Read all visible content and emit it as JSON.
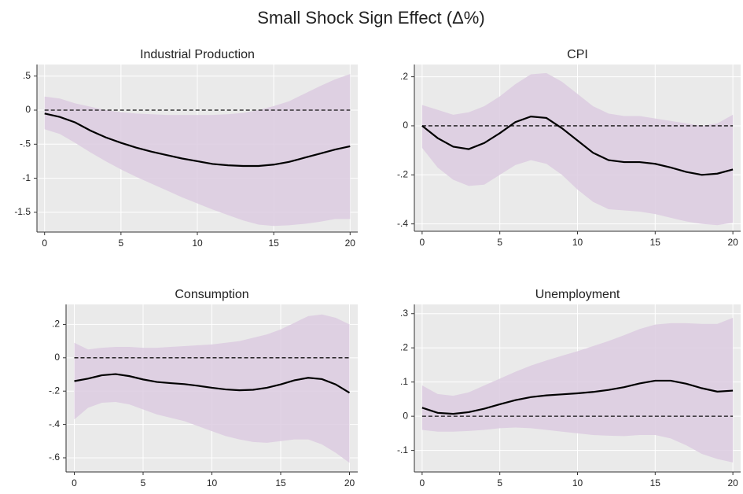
{
  "title": "Small Shock Sign Effect (Δ%)",
  "chart_data": [
    {
      "type": "line",
      "title": "Industrial Production",
      "x": [
        0,
        1,
        2,
        3,
        4,
        5,
        6,
        7,
        8,
        9,
        10,
        11,
        12,
        13,
        14,
        15,
        16,
        17,
        18,
        19,
        20
      ],
      "values": [
        -0.05,
        -0.1,
        -0.18,
        -0.3,
        -0.4,
        -0.48,
        -0.55,
        -0.61,
        -0.66,
        -0.71,
        -0.75,
        -0.79,
        -0.81,
        -0.82,
        -0.82,
        -0.8,
        -0.76,
        -0.7,
        -0.64,
        -0.58,
        -0.53
      ],
      "upper": [
        0.2,
        0.17,
        0.1,
        0.05,
        0.0,
        -0.03,
        -0.05,
        -0.06,
        -0.07,
        -0.07,
        -0.07,
        -0.07,
        -0.06,
        -0.04,
        0.0,
        0.06,
        0.13,
        0.24,
        0.35,
        0.45,
        0.53
      ],
      "lower": [
        -0.28,
        -0.35,
        -0.48,
        -0.62,
        -0.75,
        -0.87,
        -0.98,
        -1.08,
        -1.18,
        -1.28,
        -1.37,
        -1.46,
        -1.54,
        -1.62,
        -1.68,
        -1.7,
        -1.69,
        -1.67,
        -1.64,
        -1.6,
        -1.6
      ],
      "color": "#000000",
      "band_color": "#dccbe1",
      "refline": 0,
      "grid": true,
      "xlim": [
        -0.5,
        20.5
      ],
      "xticks": [
        0,
        5,
        10,
        15,
        20
      ],
      "ylim": [
        -1.79,
        0.67
      ],
      "yticks": [
        {
          "value": 0.5,
          "label": ".5"
        },
        0,
        {
          "value": -0.5,
          "label": "-.5"
        },
        -1,
        -1.5
      ]
    },
    {
      "type": "line",
      "title": "CPI",
      "x": [
        0,
        1,
        2,
        3,
        4,
        5,
        6,
        7,
        8,
        9,
        10,
        11,
        12,
        13,
        14,
        15,
        16,
        17,
        18,
        19,
        20
      ],
      "values": [
        0,
        -0.05,
        -0.085,
        -0.095,
        -0.07,
        -0.03,
        0.015,
        0.038,
        0.032,
        -0.01,
        -0.06,
        -0.11,
        -0.14,
        -0.148,
        -0.148,
        -0.155,
        -0.17,
        -0.188,
        -0.2,
        -0.195,
        -0.178
      ],
      "upper": [
        0.085,
        0.065,
        0.045,
        0.055,
        0.08,
        0.12,
        0.17,
        0.21,
        0.215,
        0.18,
        0.13,
        0.08,
        0.05,
        0.04,
        0.04,
        0.03,
        0.02,
        0.01,
        0.0,
        0.01,
        0.045
      ],
      "lower": [
        -0.09,
        -0.17,
        -0.22,
        -0.245,
        -0.24,
        -0.2,
        -0.16,
        -0.14,
        -0.155,
        -0.2,
        -0.26,
        -0.31,
        -0.34,
        -0.345,
        -0.35,
        -0.36,
        -0.375,
        -0.39,
        -0.4,
        -0.405,
        -0.395
      ],
      "color": "#000000",
      "band_color": "#dccbe1",
      "refline": 0,
      "grid": true,
      "xlim": [
        -0.5,
        20.5
      ],
      "xticks": [
        0,
        5,
        10,
        15,
        20
      ],
      "ylim": [
        -0.43,
        0.25
      ],
      "yticks": [
        {
          "value": 0.2,
          "label": ".2"
        },
        0,
        {
          "value": -0.2,
          "label": "-.2"
        },
        {
          "value": -0.4,
          "label": "-.4"
        }
      ]
    },
    {
      "type": "line",
      "title": "Consumption",
      "x": [
        0,
        1,
        2,
        3,
        4,
        5,
        6,
        7,
        8,
        9,
        10,
        11,
        12,
        13,
        14,
        15,
        16,
        17,
        18,
        19,
        20
      ],
      "values": [
        -0.14,
        -0.125,
        -0.105,
        -0.098,
        -0.11,
        -0.13,
        -0.145,
        -0.152,
        -0.158,
        -0.168,
        -0.18,
        -0.19,
        -0.195,
        -0.192,
        -0.18,
        -0.16,
        -0.135,
        -0.12,
        -0.128,
        -0.16,
        -0.21
      ],
      "upper": [
        0.09,
        0.05,
        0.06,
        0.065,
        0.065,
        0.06,
        0.06,
        0.065,
        0.07,
        0.075,
        0.08,
        0.09,
        0.1,
        0.12,
        0.14,
        0.17,
        0.21,
        0.25,
        0.26,
        0.24,
        0.2
      ],
      "lower": [
        -0.37,
        -0.3,
        -0.27,
        -0.265,
        -0.28,
        -0.31,
        -0.34,
        -0.36,
        -0.38,
        -0.41,
        -0.44,
        -0.47,
        -0.49,
        -0.505,
        -0.51,
        -0.5,
        -0.49,
        -0.49,
        -0.52,
        -0.57,
        -0.63
      ],
      "color": "#000000",
      "band_color": "#dccbe1",
      "refline": 0,
      "grid": true,
      "xlim": [
        -0.6,
        20.6
      ],
      "xticks": [
        0,
        5,
        10,
        15,
        20
      ],
      "ylim": [
        -0.685,
        0.32
      ],
      "yticks": [
        {
          "value": 0.2,
          "label": ".2"
        },
        0,
        {
          "value": -0.2,
          "label": "-.2"
        },
        {
          "value": -0.4,
          "label": "-.4"
        },
        {
          "value": -0.6,
          "label": "-.6"
        }
      ]
    },
    {
      "type": "line",
      "title": "Unemployment",
      "x": [
        0,
        1,
        2,
        3,
        4,
        5,
        6,
        7,
        8,
        9,
        10,
        11,
        12,
        13,
        14,
        15,
        16,
        17,
        18,
        19,
        20
      ],
      "values": [
        0.025,
        0.01,
        0.007,
        0.012,
        0.022,
        0.035,
        0.047,
        0.056,
        0.061,
        0.064,
        0.067,
        0.071,
        0.077,
        0.085,
        0.096,
        0.104,
        0.104,
        0.095,
        0.082,
        0.072,
        0.075
      ],
      "upper": [
        0.09,
        0.065,
        0.06,
        0.07,
        0.09,
        0.11,
        0.13,
        0.148,
        0.163,
        0.177,
        0.19,
        0.205,
        0.22,
        0.237,
        0.255,
        0.268,
        0.272,
        0.272,
        0.27,
        0.27,
        0.288
      ],
      "lower": [
        -0.04,
        -0.045,
        -0.045,
        -0.043,
        -0.04,
        -0.035,
        -0.033,
        -0.035,
        -0.04,
        -0.045,
        -0.05,
        -0.055,
        -0.057,
        -0.058,
        -0.055,
        -0.055,
        -0.065,
        -0.085,
        -0.11,
        -0.125,
        -0.135
      ],
      "color": "#000000",
      "band_color": "#dccbe1",
      "refline": 0,
      "grid": true,
      "xlim": [
        -0.5,
        20.5
      ],
      "xticks": [
        0,
        5,
        10,
        15,
        20
      ],
      "ylim": [
        -0.163,
        0.327
      ],
      "yticks": [
        {
          "value": 0.3,
          "label": ".3"
        },
        {
          "value": 0.2,
          "label": ".2"
        },
        {
          "value": 0.1,
          "label": ".1"
        },
        0,
        {
          "value": -0.1,
          "label": "-.1"
        }
      ]
    }
  ]
}
